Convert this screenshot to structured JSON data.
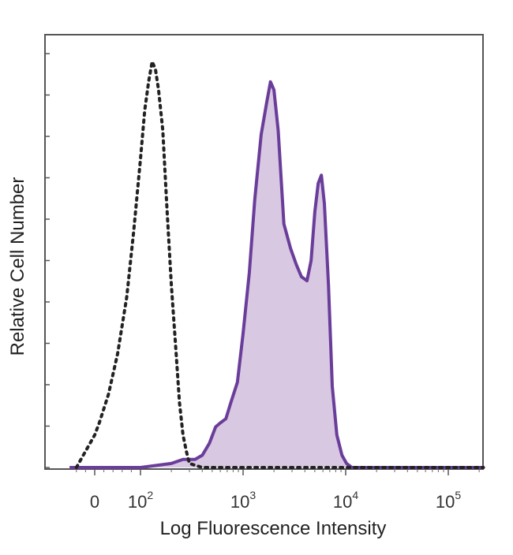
{
  "chart_data": {
    "type": "area",
    "title": "",
    "xlabel": "Log Fluorescence Intensity",
    "ylabel": "Relative Cell Number",
    "x_scale": "biexponential (log above 100)",
    "x_ticks": [
      {
        "value": 0,
        "base": "0",
        "exp": ""
      },
      {
        "value": 100,
        "base": "10",
        "exp": "2"
      },
      {
        "value": 1000,
        "base": "10",
        "exp": "3"
      },
      {
        "value": 10000,
        "base": "10",
        "exp": "4"
      },
      {
        "value": 100000,
        "base": "10",
        "exp": "5"
      }
    ],
    "grid": false,
    "legend": "none",
    "colors": {
      "stained_line": "#6a3d9a",
      "stained_fill": "#d9c8e2",
      "control_line": "#222222",
      "frame": "#555555"
    },
    "series": [
      {
        "style": "dotted",
        "x": [
          -40,
          -25,
          -10,
          0,
          10,
          30,
          50,
          70,
          85,
          100,
          110,
          120,
          130,
          140,
          150,
          165,
          180,
          200,
          220,
          240,
          260,
          280,
          300,
          400,
          1000,
          10000,
          100000,
          220000
        ],
        "y": [
          0,
          0.03,
          0.06,
          0.08,
          0.11,
          0.18,
          0.28,
          0.42,
          0.58,
          0.76,
          0.88,
          0.95,
          1.0,
          0.98,
          0.93,
          0.83,
          0.65,
          0.45,
          0.3,
          0.16,
          0.08,
          0.04,
          0.01,
          0,
          0,
          0,
          0,
          0
        ]
      },
      {
        "style": "solid-filled",
        "x": [
          -55,
          0,
          100,
          200,
          260,
          300,
          340,
          400,
          470,
          540,
          600,
          680,
          760,
          880,
          1000,
          1150,
          1300,
          1500,
          1700,
          1850,
          2000,
          2200,
          2500,
          2900,
          3300,
          3700,
          4200,
          4600,
          5000,
          5400,
          5800,
          6200,
          6800,
          7400,
          8200,
          9200,
          10200,
          11500,
          13000,
          100000,
          220000
        ],
        "y": [
          0,
          0,
          0,
          0.01,
          0.02,
          0.02,
          0.02,
          0.03,
          0.06,
          0.1,
          0.11,
          0.12,
          0.16,
          0.21,
          0.33,
          0.48,
          0.66,
          0.82,
          0.9,
          0.95,
          0.93,
          0.83,
          0.6,
          0.54,
          0.5,
          0.47,
          0.46,
          0.51,
          0.63,
          0.7,
          0.72,
          0.65,
          0.45,
          0.2,
          0.08,
          0.03,
          0.01,
          0,
          0,
          0,
          0
        ]
      }
    ]
  }
}
